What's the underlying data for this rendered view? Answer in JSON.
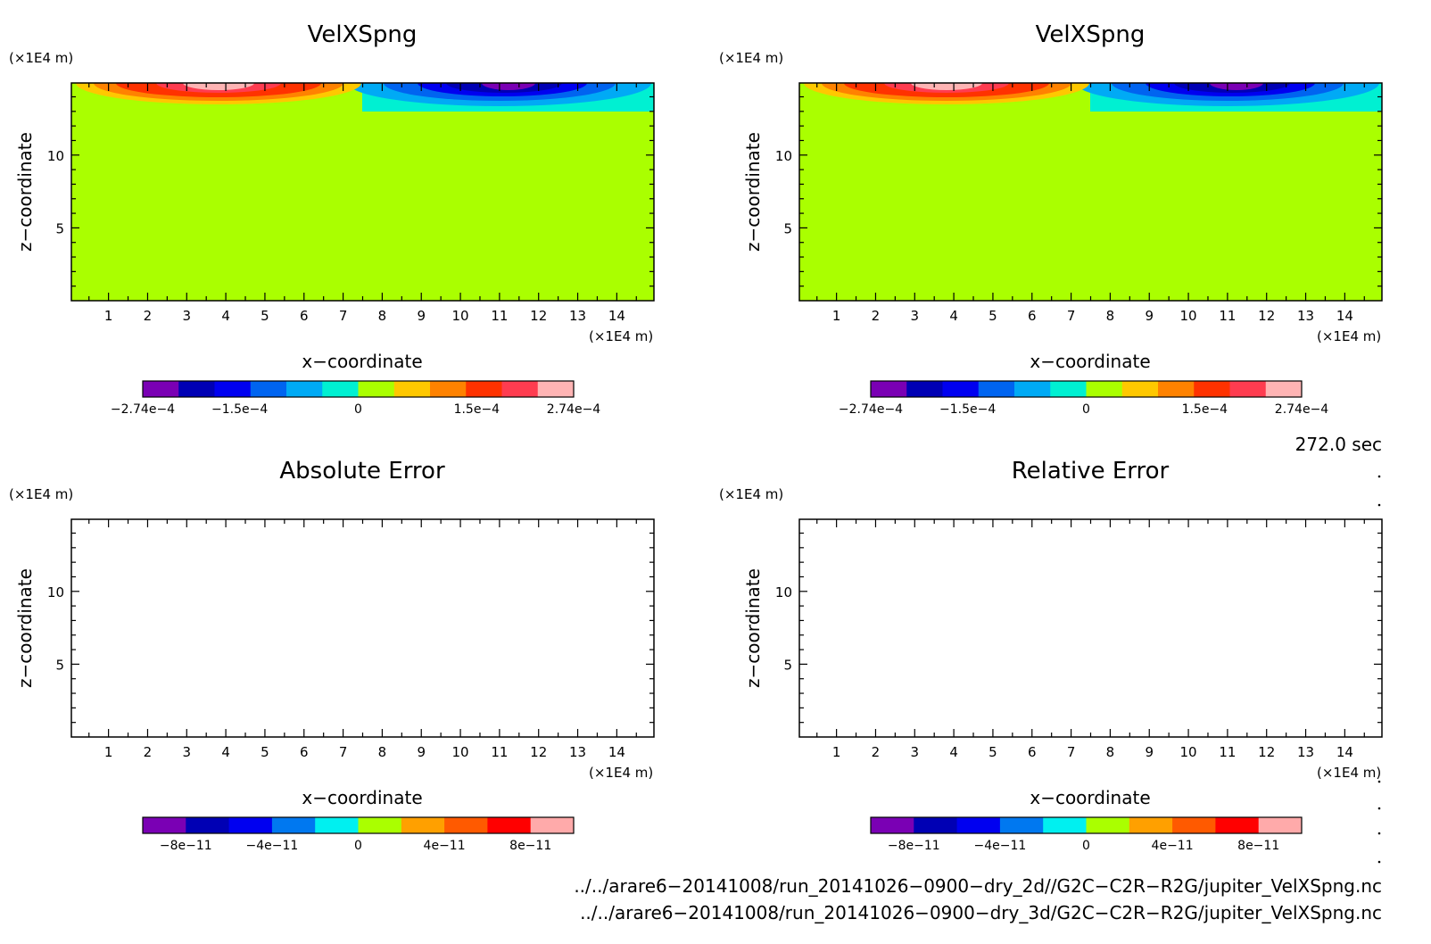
{
  "panels": [
    {
      "title": "VelXSpng",
      "ylabel": "z−coordinate",
      "xlabel": "x−coordinate",
      "yunit": "(×1E4 m)",
      "xunit": "(×1E4 m)",
      "xticks": [
        "1",
        "2",
        "3",
        "4",
        "5",
        "6",
        "7",
        "8",
        "9",
        "10",
        "11",
        "12",
        "13",
        "14"
      ],
      "yticks": [
        "5",
        "10"
      ],
      "colorbar_ticks": [
        "−2.74e−4",
        "−1.5e−4",
        "0",
        "1.5e−4",
        "2.74e−4"
      ],
      "has_field": true
    },
    {
      "title": "VelXSpng",
      "ylabel": "z−coordinate",
      "xlabel": "x−coordinate",
      "yunit": "(×1E4 m)",
      "xunit": "(×1E4 m)",
      "xticks": [
        "1",
        "2",
        "3",
        "4",
        "5",
        "6",
        "7",
        "8",
        "9",
        "10",
        "11",
        "12",
        "13",
        "14"
      ],
      "yticks": [
        "5",
        "10"
      ],
      "colorbar_ticks": [
        "−2.74e−4",
        "−1.5e−4",
        "0",
        "1.5e−4",
        "2.74e−4"
      ],
      "has_field": true
    },
    {
      "title": "Absolute Error",
      "ylabel": "z−coordinate",
      "xlabel": "x−coordinate",
      "yunit": "(×1E4 m)",
      "xunit": "(×1E4 m)",
      "xticks": [
        "1",
        "2",
        "3",
        "4",
        "5",
        "6",
        "7",
        "8",
        "9",
        "10",
        "11",
        "12",
        "13",
        "14"
      ],
      "yticks": [
        "5",
        "10"
      ],
      "colorbar_ticks": [
        "−8e−11",
        "−4e−11",
        "0",
        "4e−11",
        "8e−11"
      ],
      "has_field": false
    },
    {
      "title": "Relative Error",
      "ylabel": "z−coordinate",
      "xlabel": "x−coordinate",
      "yunit": "(×1E4 m)",
      "xunit": "(×1E4 m)",
      "xticks": [
        "1",
        "2",
        "3",
        "4",
        "5",
        "6",
        "7",
        "8",
        "9",
        "10",
        "11",
        "12",
        "13",
        "14"
      ],
      "yticks": [
        "5",
        "10"
      ],
      "colorbar_ticks": [
        "−8e−11",
        "−4e−11",
        "0",
        "4e−11",
        "8e−11"
      ],
      "has_field": false
    }
  ],
  "time_label": "272.0 sec",
  "file_paths": [
    "../../arare6−20141008/run_20141026−0900−dry_2d//G2C−C2R−R2G/jupiter_VelXSpng.nc",
    "../../arare6−20141008/run_20141026−0900−dry_3d/G2C−C2R−R2G/jupiter_VelXSpng.nc"
  ],
  "colors": {
    "colorbar_top": [
      "#7a00b4",
      "#0000b4",
      "#0000f0",
      "#0064f0",
      "#00aaf5",
      "#00f0d2",
      "#aaff00",
      "#ffc800",
      "#ff8200",
      "#ff3200",
      "#ff3c50",
      "#ffb4b4"
    ],
    "colorbar_bottom": [
      "#7a00b4",
      "#0000b4",
      "#0000f0",
      "#0078f0",
      "#00f0f0",
      "#aaff00",
      "#ffa000",
      "#ff5a00",
      "#ff0000",
      "#ffaaaa"
    ],
    "field_background": "#aaff00"
  },
  "chart_data": [
    {
      "type": "heatmap",
      "title": "VelXSpng",
      "xlabel": "x−coordinate",
      "ylabel": "z−coordinate",
      "xlim": [
        0,
        15
      ],
      "ylim": [
        0,
        15
      ],
      "units": "×1E4 m",
      "color_range": [
        -0.000274,
        0.000274
      ],
      "description_values": {
        "background": 0,
        "positive_region_x": [
          0.3,
          7.2
        ],
        "negative_region_x": [
          7.5,
          15
        ],
        "region_z": [
          13,
          15
        ]
      }
    },
    {
      "type": "heatmap",
      "title": "VelXSpng",
      "xlabel": "x−coordinate",
      "ylabel": "z−coordinate",
      "xlim": [
        0,
        15
      ],
      "ylim": [
        0,
        15
      ],
      "units": "×1E4 m",
      "color_range": [
        -0.000274,
        0.000274
      ],
      "description_values": {
        "background": 0,
        "positive_region_x": [
          0.3,
          7.2
        ],
        "negative_region_x": [
          7.5,
          15
        ],
        "region_z": [
          13,
          15
        ]
      }
    },
    {
      "type": "heatmap",
      "title": "Absolute Error",
      "xlabel": "x−coordinate",
      "ylabel": "z−coordinate",
      "xlim": [
        0,
        15
      ],
      "ylim": [
        0,
        15
      ],
      "units": "×1E4 m",
      "color_range": [
        -1e-10,
        1e-10
      ]
    },
    {
      "type": "heatmap",
      "title": "Relative Error",
      "xlabel": "x−coordinate",
      "ylabel": "z−coordinate",
      "xlim": [
        0,
        15
      ],
      "ylim": [
        0,
        15
      ],
      "units": "×1E4 m",
      "color_range": [
        -1e-10,
        1e-10
      ]
    }
  ]
}
